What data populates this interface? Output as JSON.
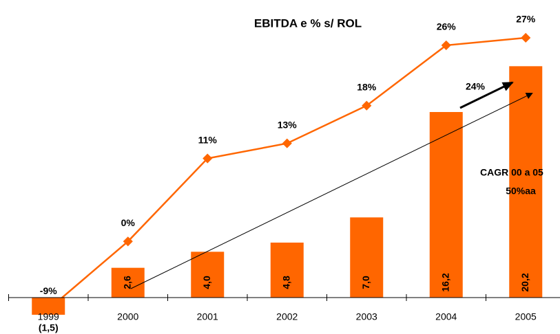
{
  "chart_data": {
    "type": "bar",
    "title": "EBITDA e % s/ ROL",
    "categories": [
      "1999",
      "2000",
      "2001",
      "2002",
      "2003",
      "2004",
      "2005"
    ],
    "series": [
      {
        "type": "bar",
        "color": "#ff6600",
        "values": [
          -1.5,
          2.6,
          4.0,
          4.8,
          7.0,
          16.2,
          20.2
        ],
        "value_labels": [
          "(1,5)",
          "2,6",
          "4,0",
          "4,8",
          "7,0",
          "16,2",
          "20,2"
        ]
      },
      {
        "type": "line",
        "axis": "y2",
        "color": "#ff6600",
        "values": [
          -9,
          0,
          11,
          13,
          18,
          26,
          27
        ],
        "value_labels": [
          "-9%",
          "0%",
          "11%",
          "13%",
          "18%",
          "26%",
          "27%"
        ]
      }
    ],
    "ylim": [
      -3,
      24
    ],
    "y2lim": [
      -12,
      29
    ],
    "annotations": [
      "24%",
      "CAGR 00 a 05",
      "50%aa"
    ]
  }
}
